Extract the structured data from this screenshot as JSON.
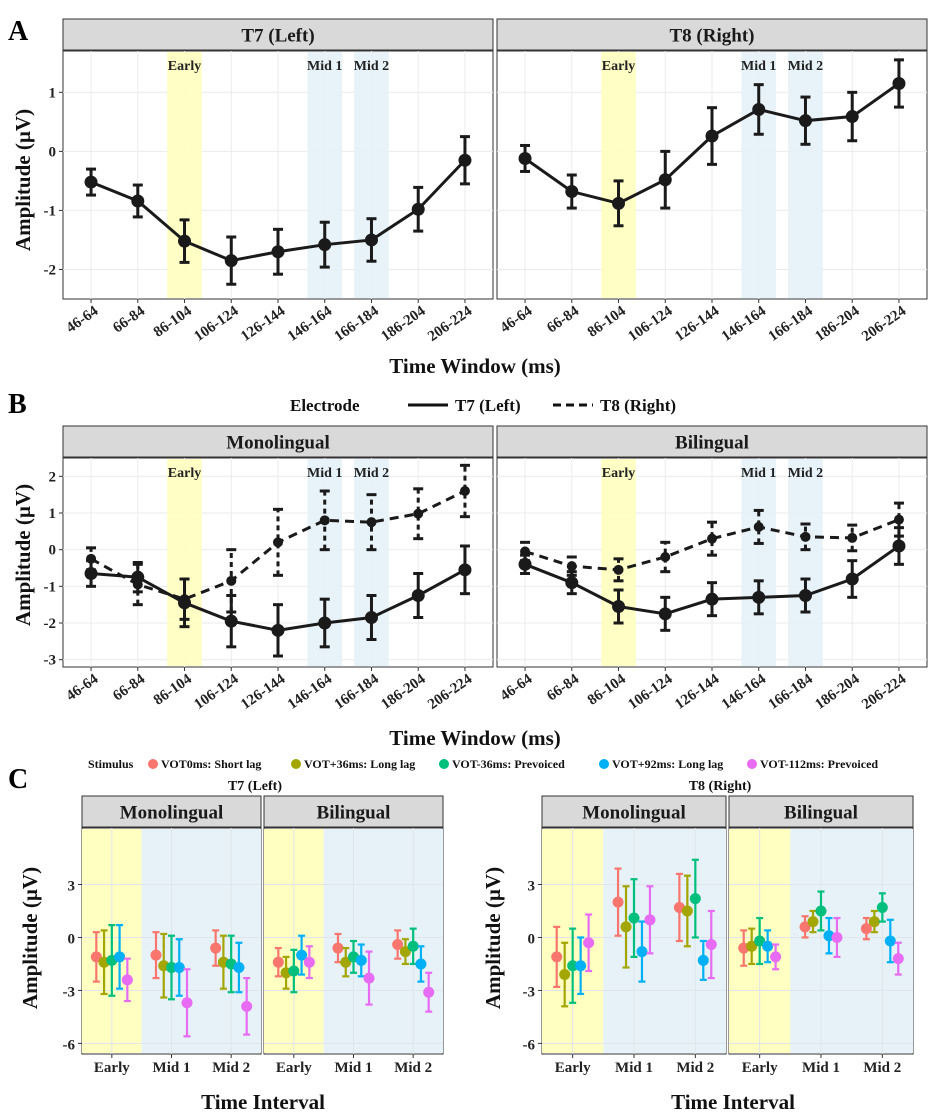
{
  "panel_letters": [
    "A",
    "B",
    "C"
  ],
  "colors": {
    "early": "#ffffc2",
    "mid": "#e6f2f8",
    "line": "#1a1a1a"
  },
  "chart_data": [
    {
      "id": "A",
      "type": "line",
      "xlabel": "Time Window (ms)",
      "ylabel": "Amplitude (µV)",
      "categories": [
        "46-64",
        "66-84",
        "86-104",
        "106-124",
        "126-144",
        "146-164",
        "166-184",
        "186-204",
        "206-224"
      ],
      "ylim": [
        -2.5,
        1.7
      ],
      "yticks": [
        -2,
        -1,
        0,
        1
      ],
      "bands": [
        {
          "label": "Early",
          "start": 2,
          "end": 2,
          "type": "early"
        },
        {
          "label": "Mid 1",
          "start": 5,
          "end": 5,
          "type": "mid"
        },
        {
          "label": "Mid 2",
          "start": 6,
          "end": 6,
          "type": "mid"
        }
      ],
      "facets": [
        {
          "title": "T7 (Left)",
          "series": [
            {
              "name": "T7 (Left)",
              "dashed": false,
              "values": [
                -0.52,
                -0.84,
                -1.52,
                -1.85,
                -1.7,
                -1.58,
                -1.5,
                -0.98,
                -0.15
              ],
              "err": [
                0.22,
                0.27,
                0.36,
                0.4,
                0.38,
                0.38,
                0.36,
                0.37,
                0.4
              ]
            }
          ]
        },
        {
          "title": "T8 (Right)",
          "series": [
            {
              "name": "T8 (Right)",
              "dashed": false,
              "values": [
                -0.12,
                -0.68,
                -0.88,
                -0.48,
                0.26,
                0.71,
                0.52,
                0.59,
                1.15
              ],
              "err": [
                0.22,
                0.28,
                0.38,
                0.48,
                0.48,
                0.42,
                0.4,
                0.41,
                0.4
              ]
            }
          ]
        }
      ]
    },
    {
      "id": "B",
      "type": "line",
      "xlabel": "Time Window (ms)",
      "ylabel": "Amplitude (µV)",
      "legend_title": "Electrode",
      "legend": [
        {
          "name": "T7 (Left)",
          "dashed": false
        },
        {
          "name": "T8 (Right)",
          "dashed": true
        }
      ],
      "categories": [
        "46-64",
        "66-84",
        "86-104",
        "106-124",
        "126-144",
        "146-164",
        "166-184",
        "186-204",
        "206-224"
      ],
      "ylim": [
        -3.2,
        2.5
      ],
      "yticks": [
        -3,
        -2,
        -1,
        0,
        1,
        2
      ],
      "bands": [
        {
          "label": "Early",
          "start": 2,
          "end": 2,
          "type": "early"
        },
        {
          "label": "Mid 1",
          "start": 5,
          "end": 5,
          "type": "mid"
        },
        {
          "label": "Mid 2",
          "start": 6,
          "end": 6,
          "type": "mid"
        }
      ],
      "facets": [
        {
          "title": "Monolingual",
          "series": [
            {
              "name": "T7 (Left)",
              "dashed": false,
              "values": [
                -0.65,
                -0.75,
                -1.45,
                -1.95,
                -2.2,
                -2.0,
                -1.85,
                -1.25,
                -0.55
              ],
              "err": [
                0.35,
                0.4,
                0.65,
                0.7,
                0.7,
                0.65,
                0.6,
                0.6,
                0.65
              ]
            },
            {
              "name": "T8 (Right)",
              "dashed": true,
              "values": [
                -0.25,
                -0.95,
                -1.35,
                -0.85,
                0.2,
                0.8,
                0.75,
                0.98,
                1.6
              ],
              "err": [
                0.3,
                0.55,
                0.55,
                0.85,
                0.9,
                0.8,
                0.75,
                0.68,
                0.7
              ]
            }
          ]
        },
        {
          "title": "Bilingual",
          "series": [
            {
              "name": "T7 (Left)",
              "dashed": false,
              "values": [
                -0.4,
                -0.9,
                -1.55,
                -1.75,
                -1.35,
                -1.3,
                -1.25,
                -0.8,
                0.1
              ],
              "err": [
                0.25,
                0.3,
                0.45,
                0.45,
                0.45,
                0.45,
                0.45,
                0.5,
                0.5
              ]
            },
            {
              "name": "T8 (Right)",
              "dashed": true,
              "values": [
                -0.05,
                -0.45,
                -0.55,
                -0.2,
                0.3,
                0.62,
                0.35,
                0.32,
                0.82
              ],
              "err": [
                0.25,
                0.25,
                0.3,
                0.4,
                0.45,
                0.45,
                0.35,
                0.35,
                0.45
              ]
            }
          ]
        }
      ]
    },
    {
      "id": "C",
      "type": "scatter",
      "legend_title": "Stimulus",
      "legend": [
        {
          "name": "VOT0ms: Short lag",
          "color": "#f8766d"
        },
        {
          "name": "VOT+36ms: Long lag",
          "color": "#a3a500"
        },
        {
          "name": "VOT-36ms: Prevoiced",
          "color": "#00bf7d"
        },
        {
          "name": "VOT+92ms: Long lag",
          "color": "#00b0f6"
        },
        {
          "name": "VOT-112ms: Prevoiced",
          "color": "#e76bf3"
        }
      ],
      "xlabel": "Time Interval",
      "ylabel": "Amplitude (µV)",
      "categories": [
        "Early",
        "Mid 1",
        "Mid 2"
      ],
      "ylim": [
        -6.6,
        6.2
      ],
      "yticks": [
        -6,
        -3,
        0,
        3
      ],
      "groups": [
        {
          "title": "T7 (Left)",
          "facets": [
            {
              "title": "Monolingual",
              "values": [
                [
                  -1.1,
                  -1.0,
                  -0.6
                ],
                [
                  -1.4,
                  -1.6,
                  -1.4
                ],
                [
                  -1.3,
                  -1.7,
                  -1.5
                ],
                [
                  -1.1,
                  -1.7,
                  -1.7
                ],
                [
                  -2.4,
                  -3.7,
                  -3.9
                ]
              ],
              "err": [
                [
                  1.4,
                  1.3,
                  1.0
                ],
                [
                  1.8,
                  1.8,
                  1.5
                ],
                [
                  2.0,
                  1.8,
                  1.6
                ],
                [
                  1.8,
                  1.6,
                  1.4
                ],
                [
                  1.2,
                  1.9,
                  1.6
                ]
              ]
            },
            {
              "title": "Bilingual",
              "values": [
                [
                  -1.4,
                  -0.6,
                  -0.4
                ],
                [
                  -2.0,
                  -1.4,
                  -0.8
                ],
                [
                  -1.9,
                  -1.1,
                  -0.5
                ],
                [
                  -1.0,
                  -1.3,
                  -1.5
                ],
                [
                  -1.4,
                  -2.3,
                  -3.1
                ]
              ],
              "err": [
                [
                  0.8,
                  0.8,
                  0.8
                ],
                [
                  0.9,
                  0.8,
                  0.7
                ],
                [
                  1.2,
                  0.9,
                  1.0
                ],
                [
                  1.1,
                  0.9,
                  1.0
                ],
                [
                  0.9,
                  1.5,
                  1.1
                ]
              ]
            }
          ]
        },
        {
          "title": "T8 (Right)",
          "facets": [
            {
              "title": "Monolingual",
              "values": [
                [
                  -1.1,
                  2.0,
                  1.7
                ],
                [
                  -2.1,
                  0.6,
                  1.5
                ],
                [
                  -1.6,
                  1.1,
                  2.2
                ],
                [
                  -1.6,
                  -0.8,
                  -1.3
                ],
                [
                  -0.3,
                  1.0,
                  -0.4
                ]
              ],
              "err": [
                [
                  1.7,
                  1.9,
                  1.9
                ],
                [
                  1.8,
                  2.3,
                  2.0
                ],
                [
                  2.1,
                  2.2,
                  2.2
                ],
                [
                  1.6,
                  1.7,
                  1.1
                ],
                [
                  1.6,
                  1.9,
                  1.9
                ]
              ]
            },
            {
              "title": "Bilingual",
              "values": [
                [
                  -0.6,
                  0.6,
                  0.5
                ],
                [
                  -0.5,
                  0.9,
                  0.9
                ],
                [
                  -0.2,
                  1.5,
                  1.7
                ],
                [
                  -0.5,
                  0.1,
                  -0.2
                ],
                [
                  -1.1,
                  0.0,
                  -1.2
                ]
              ],
              "err": [
                [
                  1.0,
                  0.6,
                  0.6
                ],
                [
                  1.0,
                  0.6,
                  0.6
                ],
                [
                  1.3,
                  1.1,
                  0.8
                ],
                [
                  0.9,
                  1.0,
                  1.2
                ],
                [
                  0.7,
                  1.1,
                  0.9
                ]
              ]
            }
          ]
        }
      ],
      "bands": [
        {
          "start": 0,
          "end": 0,
          "type": "early"
        },
        {
          "start": 1,
          "end": 2,
          "type": "mid"
        }
      ]
    }
  ]
}
